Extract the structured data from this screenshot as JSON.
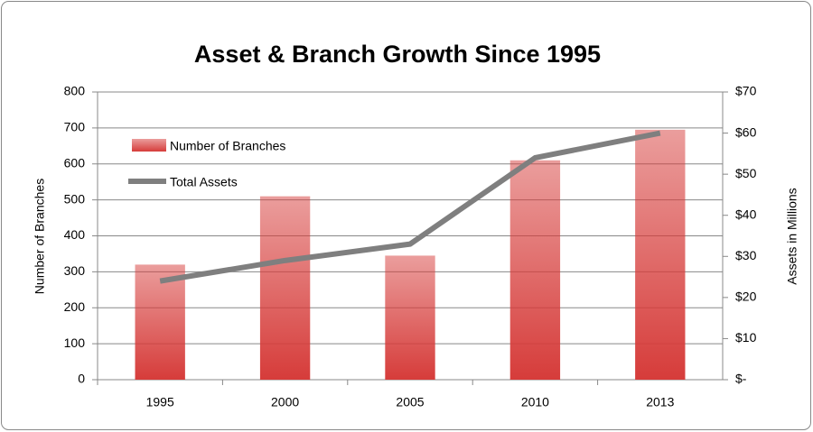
{
  "chart_data": {
    "type": "bar",
    "title": "Asset & Branch Growth Since 1995",
    "categories": [
      "1995",
      "2000",
      "2005",
      "2010",
      "2013"
    ],
    "series": [
      {
        "name": "Number of Branches",
        "type": "bar",
        "color": "#d63c3a",
        "values": [
          320,
          510,
          345,
          610,
          695
        ]
      },
      {
        "name": "Total Assets",
        "type": "line",
        "axis": "y2",
        "color": "#7f7f7f",
        "values": [
          24,
          29,
          33,
          54,
          60
        ]
      }
    ],
    "ylabel": "Number of Branches",
    "y2label": "Assets in Millions",
    "ylim": [
      0,
      800
    ],
    "yticks": [
      0,
      100,
      200,
      300,
      400,
      500,
      600,
      700,
      800
    ],
    "y2lim": [
      0,
      70
    ],
    "y2ticks": [
      {
        "value": 0,
        "label": "$-"
      },
      {
        "value": 10,
        "label": "$10"
      },
      {
        "value": 20,
        "label": "$20"
      },
      {
        "value": 30,
        "label": "$30"
      },
      {
        "value": 40,
        "label": "$40"
      },
      {
        "value": 50,
        "label": "$50"
      },
      {
        "value": 60,
        "label": "$60"
      },
      {
        "value": 70,
        "label": "$70"
      }
    ],
    "grid": true,
    "legend": "upper-left"
  }
}
